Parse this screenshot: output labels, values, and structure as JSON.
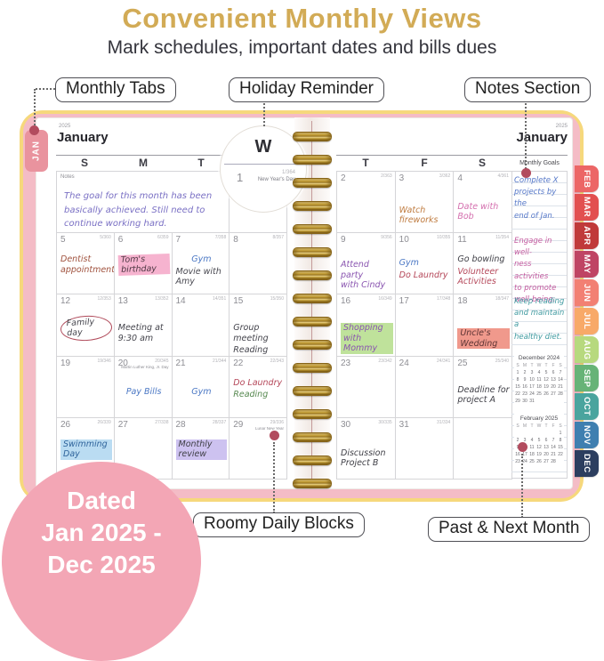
{
  "page": {
    "title": "Convenient Monthly Views",
    "title_color": "#d2ab56",
    "subtitle": "Mark schedules, important dates and bills dues"
  },
  "callouts": {
    "monthly_tabs": "Monthly Tabs",
    "holiday_reminder": "Holiday Reminder",
    "notes_section": "Notes Section",
    "roomy_daily_blocks": "Roomy Daily Blocks",
    "past_next_month": "Past & Next Month"
  },
  "badge": {
    "line1": "Dated",
    "line2": "Jan 2025 -",
    "line3": "Dec 2025"
  },
  "planner": {
    "jan_tab": "JAN",
    "month_tabs": [
      {
        "label": "FEB",
        "color": "#ec6666"
      },
      {
        "label": "MAR",
        "color": "#e25050"
      },
      {
        "label": "APR",
        "color": "#c03a3a"
      },
      {
        "label": "MAY",
        "color": "#bf4464"
      },
      {
        "label": "JUN",
        "color": "#f28073"
      },
      {
        "label": "JUL",
        "color": "#f8a968"
      },
      {
        "label": "AUG",
        "color": "#b7d97e"
      },
      {
        "label": "SEP",
        "color": "#67b377"
      },
      {
        "label": "OCT",
        "color": "#4aa49e"
      },
      {
        "label": "NOV",
        "color": "#3f7fb0"
      },
      {
        "label": "DEC",
        "color": "#2c3e5f"
      }
    ],
    "year": "2025",
    "month": "January",
    "weekdays_left": [
      "S",
      "M",
      "T",
      "W"
    ],
    "weekdays_right": [
      "T",
      "F",
      "S"
    ],
    "notes_label": "Notes",
    "notes_text": "The goal for this month has been basically achieved. Still need to continue working hard.",
    "magnifier": {
      "weekday": "W",
      "day": "1",
      "corner": "1/364",
      "holiday": "New Year's Day"
    },
    "goals_label": "Monthly Goals",
    "goals": [
      {
        "text": "Complete X\nprojects by the\nend of Jan.",
        "color": "#5577c8"
      },
      {
        "text": "Engage in well-\nness activities\nto promote\nwell-being.",
        "color": "#c45b9f"
      },
      {
        "text": "Keep reading\nand maintain a\nhealthy diet.",
        "color": "#3f9aa0"
      }
    ],
    "left_rows": [
      [
        {
          "notes": true
        },
        {
          "day": "1",
          "corner": "1/364",
          "holiday": "New Year's Day",
          "events": []
        }
      ],
      [
        {
          "day": "5",
          "corner": "5/360",
          "events": [
            {
              "text": "Dentist\nappointment",
              "color": "#a0523e"
            }
          ]
        },
        {
          "day": "6",
          "corner": "6/359",
          "events": [
            {
              "text": "Tom's birthday",
              "color": "#4a3540",
              "hl": "#f6b3cf",
              "rot": -2
            }
          ]
        },
        {
          "day": "7",
          "corner": "7/358",
          "events": [
            {
              "text": "Gym",
              "color": "#4a77c4",
              "align": "center"
            },
            {
              "text": "Movie with Amy",
              "color": "#4a4a52"
            }
          ]
        },
        {
          "day": "8",
          "corner": "8/357",
          "events": []
        }
      ],
      [
        {
          "day": "12",
          "corner": "12/353",
          "events": [
            {
              "text": "Family day",
              "color": "#44444c",
              "circle": true
            }
          ]
        },
        {
          "day": "13",
          "corner": "13/352",
          "events": [
            {
              "text": "Meeting at\n9:30 am",
              "color": "#44444c",
              "mt": 8
            }
          ]
        },
        {
          "day": "14",
          "corner": "14/351",
          "events": []
        },
        {
          "day": "15",
          "corner": "15/350",
          "events": [
            {
              "text": "Group meeting",
              "color": "#44444c",
              "mt": 8
            },
            {
              "text": "Reading",
              "color": "#44444c"
            }
          ]
        }
      ],
      [
        {
          "day": "19",
          "corner": "19/346",
          "events": []
        },
        {
          "day": "20",
          "corner": "20/345",
          "holiday": "Martin Luther King, Jr. Day",
          "events": [
            {
              "text": "Pay Bills",
              "color": "#4a77c4",
              "align": "center",
              "mt": 10
            }
          ]
        },
        {
          "day": "21",
          "corner": "21/344",
          "events": [
            {
              "text": "Gym",
              "color": "#4a77c4",
              "align": "center",
              "mt": 10
            }
          ]
        },
        {
          "day": "22",
          "corner": "22/343",
          "events": [
            {
              "text": "Do Laundry",
              "color": "#b5485a"
            },
            {
              "text": "Reading",
              "color": "#56884f"
            }
          ]
        }
      ],
      [
        {
          "day": "26",
          "corner": "26/339",
          "events": [
            {
              "text": "Swimming Day",
              "color": "#2f649c",
              "hl": "#badcf2"
            }
          ]
        },
        {
          "day": "27",
          "corner": "27/338",
          "events": []
        },
        {
          "day": "28",
          "corner": "28/337",
          "events": [
            {
              "text": "Monthly review",
              "color": "#3f3f46",
              "hl": "#cdc2f0"
            }
          ]
        },
        {
          "day": "29",
          "corner": "29/336",
          "holiday": "Lunar New Year",
          "events": []
        }
      ]
    ],
    "right_rows": [
      [
        {
          "day": "2",
          "corner": "2/363",
          "events": []
        },
        {
          "day": "3",
          "corner": "3/362",
          "events": [
            {
              "text": "Watch fireworks",
              "color": "#bf7b3f",
              "mt": 14
            }
          ]
        },
        {
          "day": "4",
          "corner": "4/361",
          "events": [
            {
              "text": "Date with\nBob",
              "color": "#d46fae",
              "mt": 10
            }
          ]
        }
      ],
      [
        {
          "day": "9",
          "corner": "9/356",
          "events": [
            {
              "text": "Attend party\nwith Cindy",
              "color": "#8a55b0",
              "mt": 6
            }
          ]
        },
        {
          "day": "10",
          "corner": "10/355",
          "events": [
            {
              "text": "Gym",
              "color": "#4a77c4",
              "mt": 4
            },
            {
              "text": "Do Laundry",
              "color": "#b5485a"
            }
          ]
        },
        {
          "day": "11",
          "corner": "11/354",
          "events": [
            {
              "text": "Go bowling",
              "color": "#3f3f46"
            },
            {
              "text": "Volunteer\nActivities",
              "color": "#b5485a"
            }
          ]
        }
      ],
      [
        {
          "day": "16",
          "corner": "16/349",
          "events": [
            {
              "text": "Shopping with\nMommy",
              "color": "#8a55b0",
              "hl": "#bfe29b",
              "mt": 8
            }
          ]
        },
        {
          "day": "17",
          "corner": "17/348",
          "events": []
        },
        {
          "day": "18",
          "corner": "18/347",
          "events": [
            {
              "text": "Uncle's Wedding",
              "color": "#5d3434",
              "hl": "#f0998c",
              "mt": 14
            }
          ]
        }
      ],
      [
        {
          "day": "23",
          "corner": "23/342",
          "events": []
        },
        {
          "day": "24",
          "corner": "24/341",
          "events": []
        },
        {
          "day": "25",
          "corner": "25/340",
          "events": [
            {
              "text": "Deadline for\nproject A",
              "color": "#3f3f46",
              "mt": 8
            }
          ]
        }
      ],
      [
        {
          "day": "30",
          "corner": "30/335",
          "events": [
            {
              "text": "Discussion\nProject B",
              "color": "#3f3f46",
              "mt": 10
            }
          ]
        },
        {
          "day": "31",
          "corner": "31/334",
          "events": []
        },
        {
          "day": "",
          "corner": "",
          "events": []
        }
      ]
    ],
    "mini_months": [
      {
        "title": "December 2024",
        "head": [
          "S",
          "M",
          "T",
          "W",
          "T",
          "F",
          "S"
        ],
        "weeks": [
          [
            "1",
            "2",
            "3",
            "4",
            "5",
            "6",
            "7"
          ],
          [
            "8",
            "9",
            "10",
            "11",
            "12",
            "13",
            "14"
          ],
          [
            "15",
            "16",
            "17",
            "18",
            "19",
            "20",
            "21"
          ],
          [
            "22",
            "23",
            "24",
            "25",
            "26",
            "27",
            "28"
          ],
          [
            "29",
            "30",
            "31",
            "",
            "",
            "",
            ""
          ]
        ]
      },
      {
        "title": "February 2025",
        "head": [
          "S",
          "M",
          "T",
          "W",
          "T",
          "F",
          "S"
        ],
        "weeks": [
          [
            "",
            "",
            "",
            "",
            "",
            "",
            "1"
          ],
          [
            "2",
            "3",
            "4",
            "5",
            "6",
            "7",
            "8"
          ],
          [
            "9",
            "10",
            "11",
            "12",
            "13",
            "14",
            "15"
          ],
          [
            "16",
            "17",
            "18",
            "19",
            "20",
            "21",
            "22"
          ],
          [
            "23",
            "24",
            "25",
            "26",
            "27",
            "28",
            ""
          ]
        ]
      }
    ]
  }
}
